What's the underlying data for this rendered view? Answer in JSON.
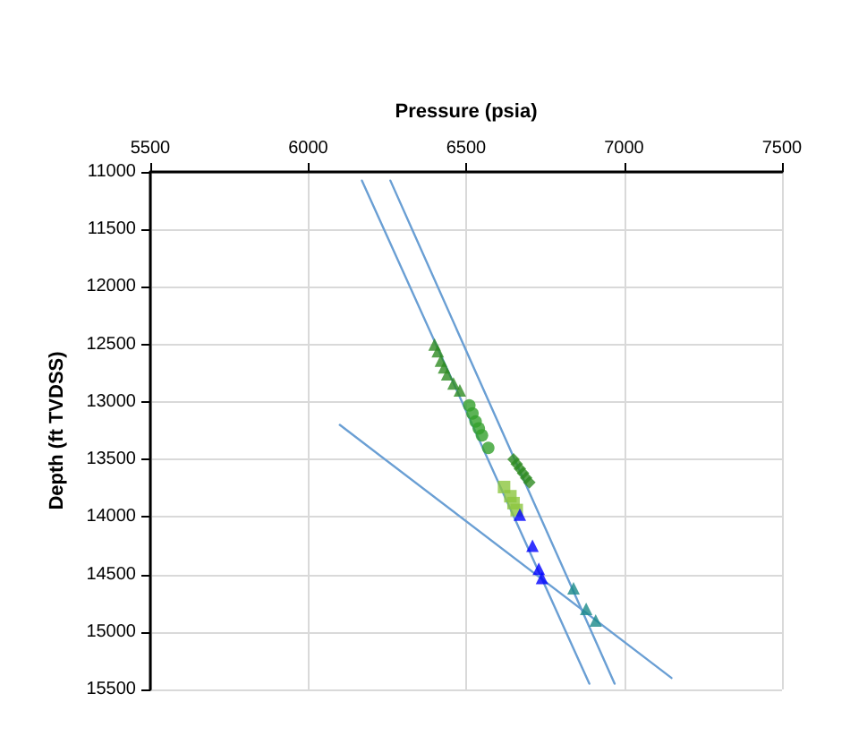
{
  "chart_data": {
    "type": "scatter",
    "xlabel": "Pressure (psia)",
    "ylabel": "Depth (ft TVDSS)",
    "xlim": [
      5500,
      7500
    ],
    "xticks": [
      5500,
      6000,
      6500,
      7000,
      7500
    ],
    "ylim": [
      15500,
      11000
    ],
    "yticks": [
      11000,
      11500,
      12000,
      12500,
      13000,
      13500,
      14000,
      14500,
      15000,
      15500
    ],
    "grid": true,
    "series": [
      {
        "marker": "triangle",
        "color": "#2e8b22",
        "x": [
          6400,
          6410,
          6420,
          6430,
          6440,
          6460,
          6480
        ],
        "values": [
          12500,
          12560,
          12640,
          12700,
          12760,
          12840,
          12900
        ]
      },
      {
        "marker": "circle",
        "color": "#33a02c",
        "x": [
          6510,
          6520,
          6530,
          6540,
          6550,
          6570
        ],
        "values": [
          13030,
          13100,
          13170,
          13230,
          13290,
          13400
        ]
      },
      {
        "marker": "diamond",
        "color": "#2e8b22",
        "x": [
          6650,
          6660,
          6670,
          6680,
          6690,
          6700
        ],
        "values": [
          13500,
          13540,
          13580,
          13620,
          13660,
          13700
        ]
      },
      {
        "marker": "square",
        "color": "#8cc63f",
        "x": [
          6620,
          6640,
          6650,
          6660
        ],
        "values": [
          13740,
          13820,
          13880,
          13940
        ]
      },
      {
        "marker": "triangle",
        "color": "#0000ff",
        "x": [
          6670,
          6710,
          6730,
          6740
        ],
        "values": [
          13980,
          14250,
          14450,
          14530
        ]
      },
      {
        "marker": "triangle",
        "color": "#1a8a8a",
        "x": [
          6840,
          6880,
          6910
        ],
        "values": [
          14620,
          14800,
          14900
        ]
      },
      {
        "type": "line",
        "marker": "none",
        "color": "#6a9fd4",
        "x": [
          6170,
          6890
        ],
        "values": [
          11075,
          15450
        ]
      },
      {
        "type": "line",
        "marker": "none",
        "color": "#6a9fd4",
        "x": [
          6260,
          6970
        ],
        "values": [
          11075,
          15450
        ]
      },
      {
        "type": "line",
        "marker": "none",
        "color": "#6a9fd4",
        "x": [
          6100,
          7150
        ],
        "values": [
          13200,
          15400
        ]
      }
    ]
  }
}
